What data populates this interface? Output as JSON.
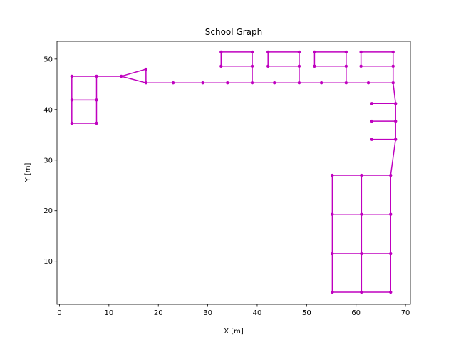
{
  "chart_data": {
    "type": "scatter",
    "title": "School Graph",
    "xlabel": "X [m]",
    "ylabel": "Y [m]",
    "xlim": [
      -0.5,
      71
    ],
    "ylim": [
      1.5,
      53.5
    ],
    "xticks": [
      0,
      10,
      20,
      30,
      40,
      50,
      60,
      70
    ],
    "yticks": [
      10,
      20,
      30,
      40,
      50
    ],
    "grid": false,
    "color": "#bf00bf",
    "nodes": {
      "n1": [
        2.5,
        46.6
      ],
      "n2": [
        7.5,
        46.6
      ],
      "n3": [
        2.5,
        41.9
      ],
      "n4": [
        7.5,
        41.9
      ],
      "n5": [
        2.5,
        37.3
      ],
      "n6": [
        7.5,
        37.3
      ],
      "n7": [
        12.5,
        46.6
      ],
      "n8": [
        17.5,
        48.0
      ],
      "n9": [
        17.5,
        45.3
      ],
      "n10": [
        23.0,
        45.3
      ],
      "n11": [
        29.0,
        45.3
      ],
      "n12": [
        34.0,
        45.3
      ],
      "n13": [
        39.0,
        45.3
      ],
      "n14": [
        43.5,
        45.3
      ],
      "n15": [
        48.5,
        45.3
      ],
      "n16": [
        53.0,
        45.3
      ],
      "n17": [
        58.0,
        45.3
      ],
      "n18": [
        62.5,
        45.3
      ],
      "n19": [
        67.5,
        45.3
      ],
      "n20": [
        32.7,
        51.4
      ],
      "n21": [
        39.0,
        51.4
      ],
      "n22": [
        32.7,
        48.6
      ],
      "n23": [
        39.0,
        48.6
      ],
      "n24": [
        42.2,
        51.4
      ],
      "n25": [
        48.5,
        51.4
      ],
      "n26": [
        42.2,
        48.6
      ],
      "n27": [
        48.5,
        48.6
      ],
      "n28": [
        51.6,
        51.4
      ],
      "n29": [
        58.0,
        51.4
      ],
      "n30": [
        51.6,
        48.6
      ],
      "n31": [
        58.0,
        48.6
      ],
      "n32": [
        61.0,
        51.4
      ],
      "n33": [
        67.5,
        51.4
      ],
      "n34": [
        61.0,
        48.6
      ],
      "n35": [
        67.5,
        48.6
      ],
      "n36": [
        68.0,
        41.2
      ],
      "n37": [
        63.2,
        41.2
      ],
      "n38": [
        68.0,
        37.7
      ],
      "n39": [
        63.2,
        37.7
      ],
      "n40": [
        68.0,
        34.1
      ],
      "n41": [
        63.2,
        34.1
      ],
      "n42": [
        67.0,
        27.0
      ],
      "n43": [
        61.1,
        27.0
      ],
      "n44": [
        55.2,
        27.0
      ],
      "n45": [
        55.2,
        19.3
      ],
      "n46": [
        61.1,
        19.3
      ],
      "n47": [
        67.0,
        19.3
      ],
      "n48": [
        55.2,
        11.5
      ],
      "n49": [
        61.1,
        11.5
      ],
      "n50": [
        67.0,
        11.5
      ],
      "n51": [
        55.2,
        3.9
      ],
      "n52": [
        61.1,
        3.9
      ],
      "n53": [
        67.0,
        3.9
      ]
    },
    "edges": [
      [
        "n1",
        "n2"
      ],
      [
        "n1",
        "n3"
      ],
      [
        "n2",
        "n4"
      ],
      [
        "n3",
        "n4"
      ],
      [
        "n3",
        "n5"
      ],
      [
        "n4",
        "n6"
      ],
      [
        "n5",
        "n6"
      ],
      [
        "n2",
        "n7"
      ],
      [
        "n7",
        "n8"
      ],
      [
        "n7",
        "n9"
      ],
      [
        "n8",
        "n9"
      ],
      [
        "n9",
        "n10"
      ],
      [
        "n10",
        "n11"
      ],
      [
        "n11",
        "n12"
      ],
      [
        "n12",
        "n13"
      ],
      [
        "n13",
        "n14"
      ],
      [
        "n14",
        "n15"
      ],
      [
        "n15",
        "n16"
      ],
      [
        "n16",
        "n17"
      ],
      [
        "n17",
        "n18"
      ],
      [
        "n18",
        "n19"
      ],
      [
        "n20",
        "n21"
      ],
      [
        "n20",
        "n22"
      ],
      [
        "n22",
        "n23"
      ],
      [
        "n21",
        "n23"
      ],
      [
        "n23",
        "n13"
      ],
      [
        "n24",
        "n25"
      ],
      [
        "n24",
        "n26"
      ],
      [
        "n26",
        "n27"
      ],
      [
        "n25",
        "n27"
      ],
      [
        "n27",
        "n15"
      ],
      [
        "n28",
        "n29"
      ],
      [
        "n28",
        "n30"
      ],
      [
        "n30",
        "n31"
      ],
      [
        "n29",
        "n31"
      ],
      [
        "n31",
        "n17"
      ],
      [
        "n32",
        "n33"
      ],
      [
        "n32",
        "n34"
      ],
      [
        "n34",
        "n35"
      ],
      [
        "n33",
        "n35"
      ],
      [
        "n35",
        "n19"
      ],
      [
        "n19",
        "n36"
      ],
      [
        "n36",
        "n37"
      ],
      [
        "n36",
        "n38"
      ],
      [
        "n38",
        "n39"
      ],
      [
        "n38",
        "n40"
      ],
      [
        "n40",
        "n41"
      ],
      [
        "n40",
        "n42"
      ],
      [
        "n42",
        "n43"
      ],
      [
        "n43",
        "n44"
      ],
      [
        "n44",
        "n51"
      ],
      [
        "n43",
        "n52"
      ],
      [
        "n42",
        "n53"
      ],
      [
        "n45",
        "n46"
      ],
      [
        "n46",
        "n47"
      ],
      [
        "n48",
        "n49"
      ],
      [
        "n49",
        "n50"
      ],
      [
        "n51",
        "n52"
      ],
      [
        "n52",
        "n53"
      ]
    ]
  }
}
